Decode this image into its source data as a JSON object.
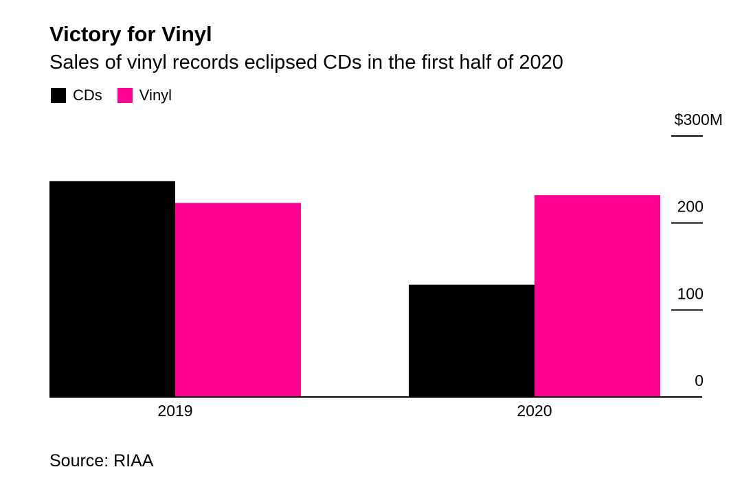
{
  "header": {
    "title": "Victory for Vinyl",
    "subtitle": "Sales of vinyl records eclipsed CDs in the first half of 2020"
  },
  "footer": {
    "source": "Source: RIAA"
  },
  "chart_data": {
    "type": "bar",
    "title": "Victory for Vinyl",
    "subtitle": "Sales of vinyl records eclipsed CDs in the first half of 2020",
    "categories": [
      "2019",
      "2020"
    ],
    "series": [
      {
        "name": "CDs",
        "color": "#000000",
        "values": [
          248,
          129
        ]
      },
      {
        "name": "Vinyl",
        "color": "#ff0090",
        "values": [
          223,
          232
        ]
      }
    ],
    "ylim": [
      0,
      300
    ],
    "yticks": [
      {
        "value": 0,
        "label": "0"
      },
      {
        "value": 100,
        "label": "100"
      },
      {
        "value": 200,
        "label": "200"
      },
      {
        "value": 300,
        "label": "$300M"
      }
    ],
    "y_axis_side": "right",
    "grid": false,
    "legend_position": "top-left"
  }
}
